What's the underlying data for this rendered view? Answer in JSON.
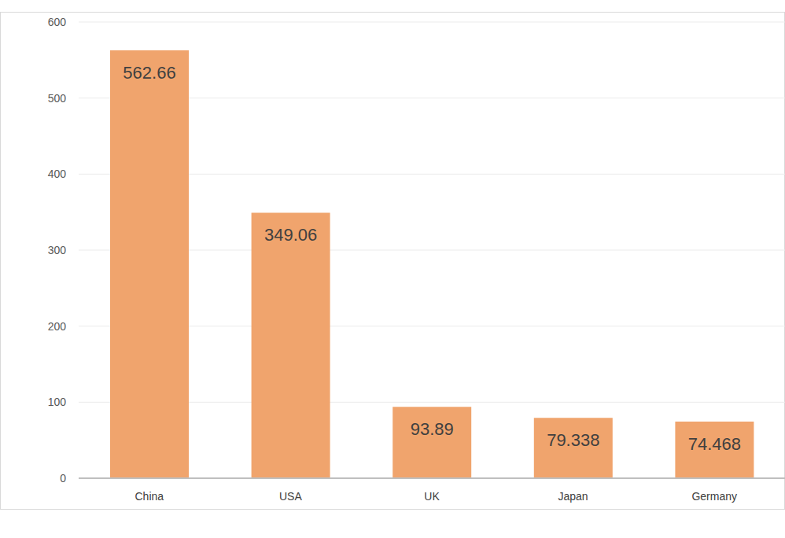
{
  "chart_data": {
    "type": "bar",
    "categories": [
      "China",
      "USA",
      "UK",
      "Japan",
      "Germany"
    ],
    "values": [
      562.66,
      349.06,
      93.89,
      79.338,
      74.468
    ],
    "color": "#f0a46d",
    "ylim": [
      0,
      600
    ],
    "yticks": [
      0,
      100,
      200,
      300,
      400,
      500,
      600
    ],
    "grid": true,
    "data_labels": true
  }
}
